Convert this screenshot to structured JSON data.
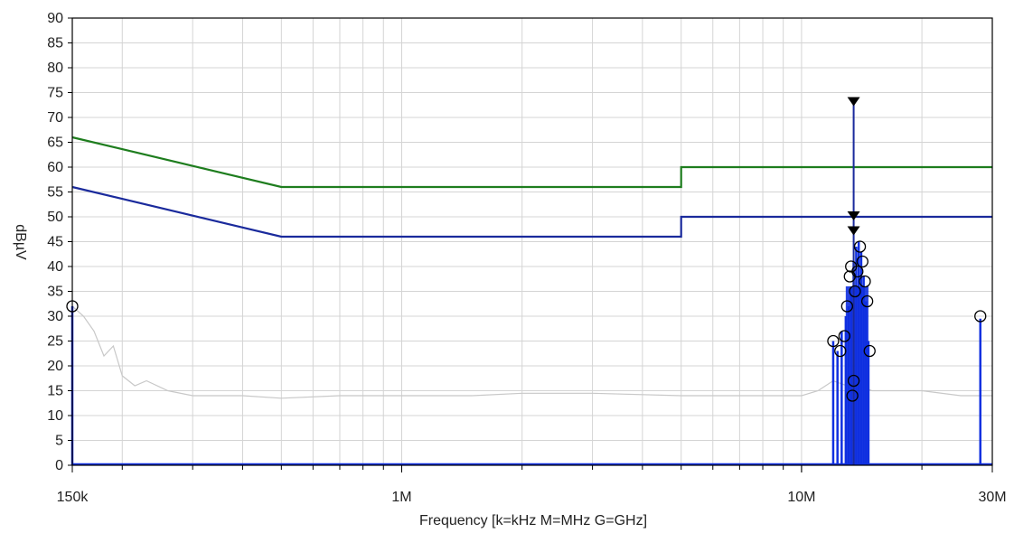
{
  "chart_data": {
    "type": "line",
    "xlabel": "Frequency [k=kHz M=MHz G=GHz]",
    "ylabel": "dBµV",
    "x_scale": "log",
    "xlim": [
      150000,
      30000000
    ],
    "ylim": [
      0,
      90
    ],
    "grid": true,
    "x_tick_labels": [
      {
        "value": 150000,
        "label": "150k"
      },
      {
        "value": 1000000,
        "label": "1M"
      },
      {
        "value": 10000000,
        "label": "10M"
      },
      {
        "value": 30000000,
        "label": "30M"
      }
    ],
    "y_ticks": [
      0,
      5,
      10,
      15,
      20,
      25,
      30,
      35,
      40,
      45,
      50,
      55,
      60,
      65,
      70,
      75,
      80,
      85,
      90
    ],
    "colors": {
      "quasi_peak_limit": "#1e7d1e",
      "average_limit": "#1a2a9c",
      "noise_trace": "#c8c8c8",
      "emissions": "#1030e0",
      "markers": "#000000",
      "grid": "#d4d4d4"
    },
    "series": [
      {
        "key": "quasi_peak_limit",
        "x": [
          150000,
          500000,
          500000,
          5000000,
          5000000,
          30000000
        ],
        "y": [
          66,
          56,
          56,
          56,
          60,
          60
        ]
      },
      {
        "key": "average_limit",
        "x": [
          150000,
          500000,
          500000,
          5000000,
          5000000,
          30000000
        ],
        "y": [
          56,
          46,
          46,
          46,
          50,
          50
        ]
      },
      {
        "key": "noise_trace",
        "x": [
          150000,
          160000,
          170000,
          180000,
          190000,
          200000,
          215000,
          230000,
          260000,
          300000,
          400000,
          500000,
          700000,
          1000000,
          1500000,
          2000000,
          3000000,
          5000000,
          7000000,
          10000000,
          11000000,
          12000000,
          13000000,
          14000000,
          15000000,
          17000000,
          20000000,
          25000000,
          30000000
        ],
        "y": [
          32,
          30,
          27,
          22,
          24,
          18,
          16,
          17,
          15,
          14,
          14,
          13.5,
          14,
          14,
          14,
          14.5,
          14.5,
          14,
          14,
          14,
          15,
          17,
          16,
          16,
          15,
          15,
          15,
          14,
          14
        ]
      }
    ],
    "emissions": {
      "frequencies": [
        150000,
        12000000,
        12300000,
        12600000,
        12900000,
        13100000,
        13300000,
        13500000,
        13700000,
        13900000,
        14100000,
        14300000,
        14500000,
        14700000,
        28000000
      ],
      "levels": [
        32,
        25,
        23,
        27,
        30,
        32,
        36,
        41,
        44,
        45,
        43,
        38,
        33,
        25,
        29.5
      ]
    },
    "markers": [
      {
        "x": 150000,
        "y": 32
      },
      {
        "x": 12000000,
        "y": 25
      },
      {
        "x": 12500000,
        "y": 23
      },
      {
        "x": 12800000,
        "y": 26
      },
      {
        "x": 13000000,
        "y": 32
      },
      {
        "x": 13200000,
        "y": 38
      },
      {
        "x": 13300000,
        "y": 40
      },
      {
        "x": 13400000,
        "y": 14
      },
      {
        "x": 13500000,
        "y": 17
      },
      {
        "x": 13600000,
        "y": 35
      },
      {
        "x": 13800000,
        "y": 39
      },
      {
        "x": 14000000,
        "y": 44
      },
      {
        "x": 14200000,
        "y": 41
      },
      {
        "x": 14400000,
        "y": 37
      },
      {
        "x": 14600000,
        "y": 33
      },
      {
        "x": 14800000,
        "y": 23
      },
      {
        "x": 28000000,
        "y": 30
      }
    ],
    "peak_indicator": {
      "x": 13500000,
      "y_top": 73,
      "y_mid": 50,
      "y_low": 47
    }
  }
}
